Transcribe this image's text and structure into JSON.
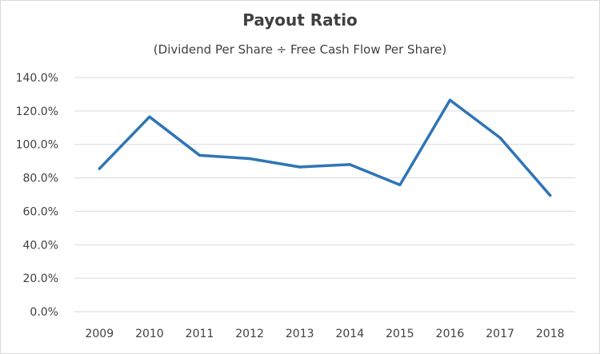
{
  "chart_data": {
    "type": "line",
    "title": "Payout Ratio",
    "subtitle": "(Dividend Per Share ÷ Free Cash Flow Per Share)",
    "xlabel": "",
    "ylabel": "",
    "categories": [
      "2009",
      "2010",
      "2011",
      "2012",
      "2013",
      "2014",
      "2015",
      "2016",
      "2017",
      "2018"
    ],
    "series": [
      {
        "values": [
          85.5,
          116.5,
          93.5,
          91.5,
          86.5,
          88.0,
          75.8,
          126.5,
          104.0,
          69.5
        ]
      }
    ],
    "ylim": [
      0,
      140
    ],
    "yticks": [
      0,
      20,
      40,
      60,
      80,
      100,
      120,
      140
    ],
    "ytick_labels": [
      "0.0%",
      "20.0%",
      "40.0%",
      "60.0%",
      "80.0%",
      "100.0%",
      "120.0%",
      "140.0%"
    ],
    "grid": true,
    "legend": "none",
    "line_color": "#2e75b6",
    "grid_color": "#d9d9d9"
  }
}
